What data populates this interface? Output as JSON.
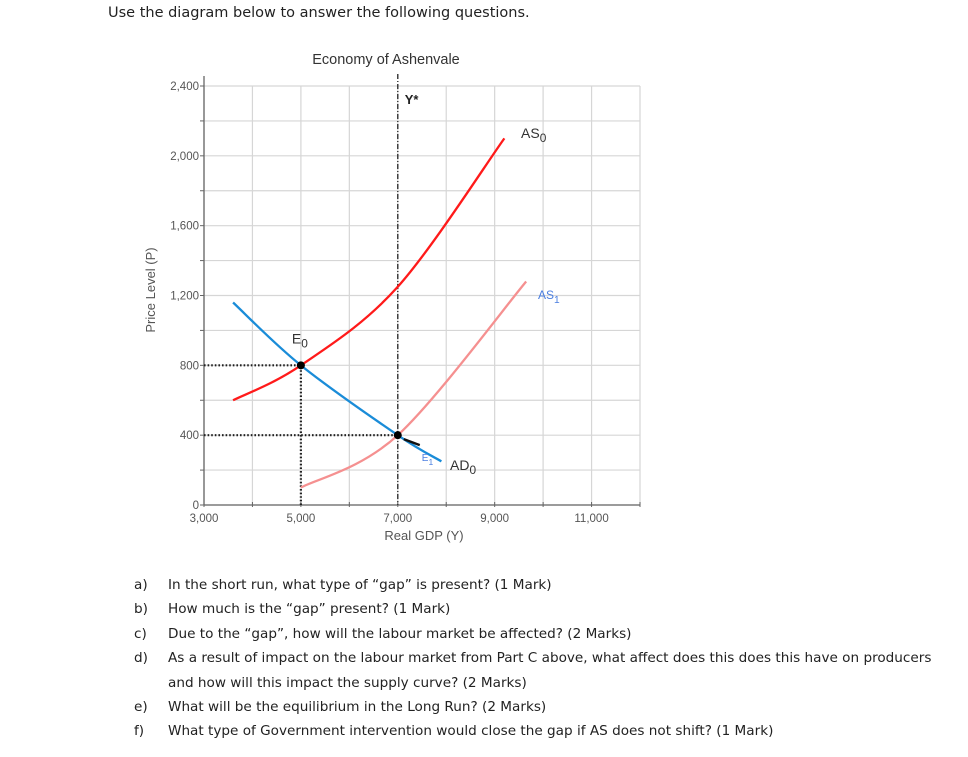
{
  "intro": "Use the diagram below to answer the following questions.",
  "chart_data": {
    "type": "line",
    "title": "Economy of Ashenvale",
    "xlabel": "Real GDP (Y)",
    "ylabel": "Price Level (P)",
    "xlim": [
      3000,
      12000
    ],
    "ylim": [
      0,
      2400
    ],
    "x_ticks": [
      "3,000",
      "5,000",
      "7,000",
      "9,000",
      "11,000"
    ],
    "y_ticks": [
      "0",
      "400",
      "800",
      "1,200",
      "1,600",
      "2,000",
      "2,400"
    ],
    "grid": true,
    "potential_output": {
      "label": "Y*",
      "x": 7000
    },
    "series": [
      {
        "name": "AD0",
        "label_main": "AD",
        "label_sub": "0",
        "color": "#1a8cd8",
        "points": [
          [
            3600,
            1160
          ],
          [
            5000,
            800
          ],
          [
            7000,
            400
          ],
          [
            7900,
            250
          ]
        ]
      },
      {
        "name": "AS0",
        "label_main": "AS",
        "label_sub": "0",
        "color": "#ff1a1a",
        "points": [
          [
            3600,
            600
          ],
          [
            5000,
            800
          ],
          [
            7000,
            1250
          ],
          [
            9200,
            2100
          ]
        ]
      },
      {
        "name": "AS1",
        "label_main": "AS",
        "label_sub": "1",
        "color": "#f59090",
        "label_color": "#4a7ee0",
        "points": [
          [
            5000,
            100
          ],
          [
            7000,
            400
          ],
          [
            9650,
            1280
          ]
        ]
      }
    ],
    "points": [
      {
        "name": "E0",
        "label_main": "E",
        "label_sub": "0",
        "x": 5000,
        "y": 800
      },
      {
        "name": "E1",
        "label_main": "E",
        "label_sub": "1",
        "x": 7000,
        "y": 400
      }
    ],
    "dotted_guides": [
      {
        "from": [
          3000,
          800
        ],
        "to": [
          5000,
          800
        ]
      },
      {
        "from": [
          5000,
          0
        ],
        "to": [
          5000,
          800
        ]
      },
      {
        "from": [
          3000,
          400
        ],
        "to": [
          7000,
          400
        ]
      }
    ]
  },
  "questions": [
    {
      "letter": "a)",
      "text": "In the short run, what type of “gap” is present? (1 Mark)"
    },
    {
      "letter": "b)",
      "text": "How much is the “gap” present? (1 Mark)"
    },
    {
      "letter": "c)",
      "text": "Due to the “gap”, how will the labour market be affected? (2 Marks)"
    },
    {
      "letter": "d)",
      "text": "As a result of impact on the labour market from Part C above, what affect does this does this have on producers and how will this impact the supply curve? (2 Marks)"
    },
    {
      "letter": "e)",
      "text": "What will be the equilibrium in the Long Run? (2 Marks)"
    },
    {
      "letter": "f)",
      "text": "What type of Government intervention would close the gap if AS does not shift? (1 Mark)"
    }
  ]
}
